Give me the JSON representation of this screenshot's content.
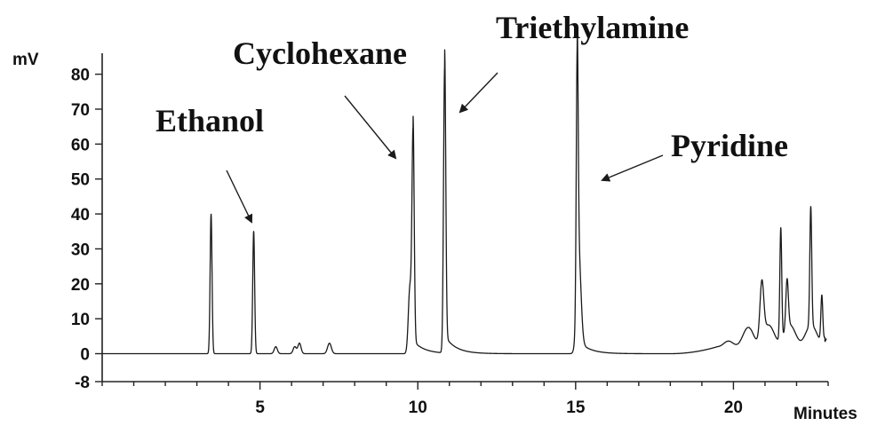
{
  "chart_data": {
    "type": "line",
    "title": "",
    "xlabel": "Minutes",
    "ylabel": "mV",
    "xlim": [
      0,
      23
    ],
    "ylim": [
      -8,
      86
    ],
    "x_ticks": [
      5,
      10,
      15,
      20
    ],
    "y_ticks": [
      -8,
      0,
      10,
      20,
      30,
      40,
      50,
      60,
      70,
      80
    ],
    "grid": false,
    "baseline": 0,
    "peaks": [
      {
        "x": 3.45,
        "y": 40,
        "w": 0.03
      },
      {
        "x": 4.8,
        "y": 35,
        "w": 0.03
      },
      {
        "x": 5.5,
        "y": 2,
        "w": 0.05
      },
      {
        "x": 6.1,
        "y": 2,
        "w": 0.05
      },
      {
        "x": 6.25,
        "y": 3,
        "w": 0.05
      },
      {
        "x": 7.2,
        "y": 3,
        "w": 0.06
      },
      {
        "x": 9.75,
        "y": 19,
        "w": 0.05
      },
      {
        "x": 9.85,
        "y": 62,
        "w": 0.035
      },
      {
        "x": 10.85,
        "y": 82,
        "w": 0.035
      },
      {
        "x": 15.05,
        "y": 69,
        "w": 0.03
      },
      {
        "x": 15.1,
        "y": 25,
        "w": 0.07
      },
      {
        "x": 20.9,
        "y": 16,
        "w": 0.06
      },
      {
        "x": 21.5,
        "y": 32,
        "w": 0.03
      },
      {
        "x": 21.7,
        "y": 14,
        "w": 0.04
      },
      {
        "x": 22.45,
        "y": 34,
        "w": 0.03
      },
      {
        "x": 22.8,
        "y": 13,
        "w": 0.03
      }
    ],
    "annotations": [
      {
        "text": "Ethanol",
        "peak_x": 4.8,
        "peak_y": 35
      },
      {
        "text": "Cyclohexane",
        "peak_x": 9.85,
        "peak_y": 62
      },
      {
        "text": "Triethylamine",
        "peak_x": 10.85,
        "peak_y": 82
      },
      {
        "text": "Pyridine",
        "peak_x": 15.05,
        "peak_y": 69
      }
    ]
  }
}
